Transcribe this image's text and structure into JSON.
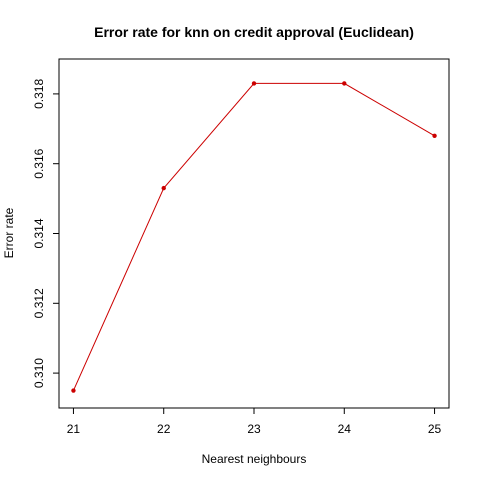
{
  "chart_data": {
    "type": "line",
    "title": "Error rate for knn on credit approval (Euclidean)",
    "xlabel": "Nearest neighbours",
    "ylabel": "Error rate",
    "x": [
      21,
      22,
      23,
      24,
      25
    ],
    "series": [
      {
        "values": [
          0.3095,
          0.3153,
          0.3183,
          0.3183,
          0.3168
        ],
        "color": "#cc0000"
      }
    ],
    "xticks": [
      "21",
      "22",
      "23",
      "24",
      "25"
    ],
    "yticks": [
      "0.310",
      "0.312",
      "0.314",
      "0.316",
      "0.318"
    ],
    "xlim": [
      20.84,
      25.16
    ],
    "ylim": [
      0.309,
      0.319
    ],
    "grid": false,
    "legend": "none"
  }
}
